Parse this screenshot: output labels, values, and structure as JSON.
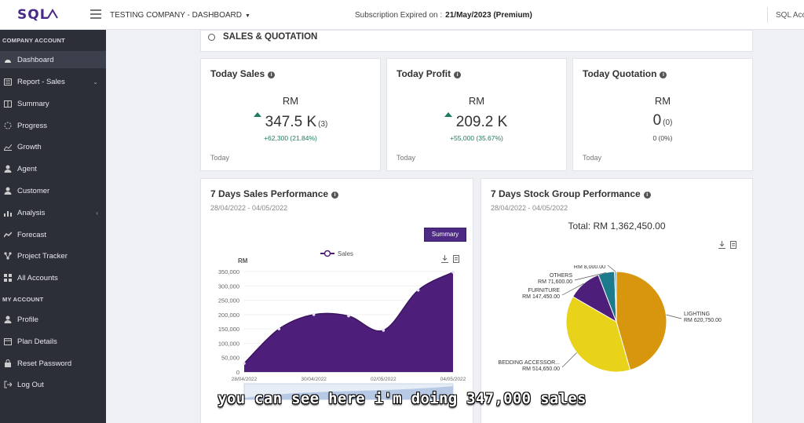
{
  "header": {
    "logo": "SQL",
    "company": "TESTING COMPANY - DASHBOARD",
    "subscription_label": "Subscription Expired on :",
    "subscription_value": "21/May/2023 (Premium)",
    "account_label": "SQL Acc"
  },
  "sidebar": {
    "section_company": "COMPANY ACCOUNT",
    "section_my": "MY ACCOUNT",
    "items": [
      {
        "label": "Dashboard",
        "icon": "dashboard-icon"
      },
      {
        "label": "Report - Sales",
        "icon": "report-icon"
      },
      {
        "label": "Summary",
        "icon": "summary-icon"
      },
      {
        "label": "Progress",
        "icon": "progress-icon"
      },
      {
        "label": "Growth",
        "icon": "growth-icon"
      },
      {
        "label": "Agent",
        "icon": "agent-icon"
      },
      {
        "label": "Customer",
        "icon": "customer-icon"
      },
      {
        "label": "Analysis",
        "icon": "analysis-icon"
      },
      {
        "label": "Forecast",
        "icon": "forecast-icon"
      },
      {
        "label": "Project Tracker",
        "icon": "project-tracker-icon"
      },
      {
        "label": "All Accounts",
        "icon": "accounts-icon"
      },
      {
        "label": "Profile",
        "icon": "profile-icon"
      },
      {
        "label": "Plan Details",
        "icon": "plan-icon"
      },
      {
        "label": "Reset Password",
        "icon": "lock-icon"
      },
      {
        "label": "Log Out",
        "icon": "logout-icon"
      }
    ]
  },
  "section": {
    "title": "SALES & QUOTATION"
  },
  "stats": [
    {
      "title": "Today Sales",
      "currency": "RM",
      "value": "347.5 K",
      "count": "(3)",
      "change": "+62,300 (21.84%)",
      "footer": "Today"
    },
    {
      "title": "Today Profit",
      "currency": "RM",
      "value": "209.2 K",
      "count": "",
      "change": "+55,000 (35.67%)",
      "footer": "Today"
    },
    {
      "title": "Today Quotation",
      "currency": "RM",
      "value": "0",
      "count": "(0)",
      "change": "0 (0%)",
      "footer": "Today"
    }
  ],
  "sales_perf": {
    "title": "7 Days Sales Performance",
    "date": "28/04/2022 - 04/05/2022",
    "summary_label": "Summary"
  },
  "stock_perf": {
    "title": "7 Days Stock Group Performance",
    "date": "28/04/2022 - 04/05/2022",
    "total": "Total: RM 1,362,450.00"
  },
  "caption": "you can see here i'm doing 347,000 sales",
  "colors": {
    "brand": "#4e2a84",
    "positive": "#1e7b62",
    "sidebar": "#2c2e38"
  },
  "chart_data": [
    {
      "type": "area",
      "ylabel": "RM",
      "legend": "Sales",
      "ylim": [
        0,
        350000
      ],
      "yticks": [
        0,
        50000,
        100000,
        150000,
        200000,
        250000,
        300000,
        350000
      ],
      "ytick_labels": [
        "0",
        "50,000",
        "100,000",
        "150,000",
        "200,000",
        "250,000",
        "300,000",
        "350,000"
      ],
      "x": [
        "28/04/2022",
        "29/04/2022",
        "30/04/2022",
        "01/05/2022",
        "02/05/2022",
        "03/05/2022",
        "04/05/2022"
      ],
      "x_tick_labels": [
        "28/04/2022",
        "30/04/2022",
        "02/05/2022",
        "04/05/2022"
      ],
      "x_tick_index": [
        0,
        2,
        4,
        6
      ],
      "series": [
        {
          "name": "Sales",
          "values": [
            30000,
            150000,
            200000,
            195000,
            145000,
            285000,
            347500
          ]
        }
      ]
    },
    {
      "type": "pie",
      "total": 1362450,
      "slices": [
        {
          "label": "LIGHTING",
          "amount": "RM 620,750.00",
          "value": 620750,
          "color": "#d7960d"
        },
        {
          "label": "BEDDING ACCESSOR...",
          "amount": "RM 514,650.00",
          "value": 514650,
          "color": "#e8d21a"
        },
        {
          "label": "FURNITURE",
          "amount": "RM 147,450.00",
          "value": 147450,
          "color": "#4e1f7a"
        },
        {
          "label": "OTHERS",
          "amount": "RM 71,600.00",
          "value": 71600,
          "color": "#1c7a8c"
        },
        {
          "label": "STORAGE",
          "amount": "RM 8,000.00",
          "value": 8000,
          "color": "#5a9dd4"
        }
      ]
    }
  ]
}
